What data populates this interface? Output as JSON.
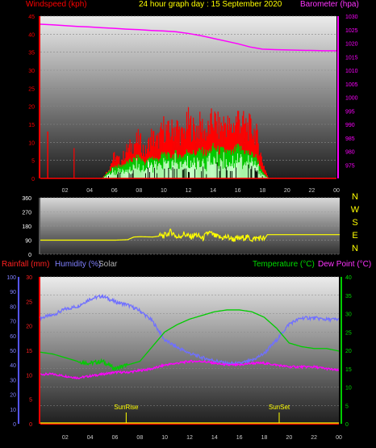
{
  "header": {
    "windspeed_label": "Windspeed (kph)",
    "title": "24 hour graph day : 15 September 2020",
    "barometer_label": "Barometer (hpa)"
  },
  "lower_header": {
    "rainfall_label": "Rainfall (mm)",
    "humidity_label": "Humidity (%)",
    "solar_label": "Solar",
    "temperature_label": "Temperature (°C)",
    "dewpoint_label": "Dew Point (°C)"
  },
  "colors": {
    "wind_gust": "#ff0000",
    "wind_avg": "#00cc00",
    "wind_low": "#ccffcc",
    "barometer": "#ff00ff",
    "direction": "#ffff00",
    "humidity": "#7070ff",
    "temperature": "#00cc00",
    "dewpoint": "#ff00ff",
    "solar": "#ffff00",
    "rain": "#ff0000"
  },
  "chart_data": [
    {
      "type": "area",
      "title": "24 hour graph day : 15 September 2020",
      "xlabel": "",
      "ylabel": "Windspeed (kph)",
      "y2label": "Barometer (hpa)",
      "xlim": [
        0,
        24
      ],
      "ylim": [
        0,
        45
      ],
      "y2lim": [
        970,
        1030
      ],
      "x_ticks": [
        "02",
        "04",
        "06",
        "08",
        "10",
        "12",
        "14",
        "16",
        "18",
        "20",
        "22",
        "00"
      ],
      "y_ticks": [
        "0",
        "5",
        "10",
        "15",
        "20",
        "25",
        "30",
        "35",
        "40",
        "45"
      ],
      "y2_ticks": [
        "975",
        "980",
        "985",
        "990",
        "995",
        "1000",
        "1005",
        "1010",
        "1015",
        "1020",
        "1025",
        "1030"
      ],
      "series": [
        {
          "name": "Windspeed (kph)",
          "x": [
            0,
            2.7,
            2.75,
            2.8,
            4.0,
            5.0,
            5.5,
            6.0,
            6.5,
            7.0,
            7.5,
            8.0,
            8.5,
            9.0,
            9.5,
            10.0,
            10.5,
            11.0,
            11.5,
            12.0,
            12.5,
            13.0,
            13.5,
            14.0,
            14.5,
            15.0,
            15.5,
            16.0,
            16.5,
            17.0,
            17.5,
            18.0,
            18.5,
            19.0,
            24
          ],
          "values": [
            0,
            0,
            13,
            0,
            0,
            0,
            3,
            8,
            6,
            10,
            12,
            14,
            9,
            15,
            13,
            18,
            16,
            19,
            15,
            20,
            17,
            19,
            16,
            21,
            18,
            20,
            17,
            22,
            19,
            18,
            16,
            6,
            0,
            0,
            0
          ]
        },
        {
          "name": "Wind average",
          "x": [
            0,
            5.0,
            5.5,
            6.0,
            6.5,
            7.0,
            7.5,
            8.0,
            8.5,
            9.0,
            9.5,
            10.0,
            10.5,
            11.0,
            11.5,
            12.0,
            12.5,
            13.0,
            13.5,
            14.0,
            14.5,
            15.0,
            15.5,
            16.0,
            16.5,
            17.0,
            17.5,
            18.0,
            18.5,
            24
          ],
          "values": [
            0,
            0,
            2,
            4,
            4,
            5,
            6,
            7,
            5,
            7,
            6,
            8,
            7,
            8,
            7,
            9,
            8,
            9,
            8,
            10,
            9,
            9,
            8,
            10,
            9,
            8,
            7,
            2,
            0,
            0
          ]
        },
        {
          "name": "Barometer (hpa)",
          "x": [
            0,
            1,
            2,
            3,
            4,
            5,
            6,
            7,
            8,
            9,
            10,
            11,
            12,
            13,
            14,
            15,
            16,
            17,
            18,
            19,
            20,
            21,
            22,
            23,
            24
          ],
          "values": [
            1027,
            1026.8,
            1026.5,
            1026.2,
            1026,
            1025.7,
            1025.5,
            1025.2,
            1025,
            1024.7,
            1024.5,
            1024.2,
            1023.6,
            1022.8,
            1021.8,
            1020.8,
            1019.8,
            1018.6,
            1017.8,
            1017.6,
            1017.5,
            1017.4,
            1017.3,
            1017.2,
            1017.2
          ]
        }
      ]
    },
    {
      "type": "line",
      "ylabel": "",
      "xlim": [
        0,
        24
      ],
      "ylim": [
        0,
        360
      ],
      "y_ticks": [
        "0",
        "90",
        "180",
        "270",
        "360"
      ],
      "right_labels": [
        "N",
        "W",
        "S",
        "E",
        "N"
      ],
      "series": [
        {
          "name": "",
          "x": [
            0,
            1,
            2,
            3,
            4,
            5,
            6,
            7,
            7.5,
            8,
            9,
            10,
            10.5,
            11,
            11.5,
            12,
            12.5,
            13,
            13.5,
            14,
            14.5,
            15,
            15.5,
            16,
            16.5,
            17,
            17.5,
            18,
            18.2,
            19,
            20,
            21,
            22,
            23,
            24
          ],
          "values": [
            90,
            90,
            90,
            90,
            90,
            90,
            90,
            93,
            110,
            112,
            110,
            120,
            145,
            105,
            130,
            110,
            125,
            100,
            140,
            115,
            105,
            110,
            95,
            100,
            110,
            95,
            105,
            100,
            125,
            125,
            125,
            125,
            125,
            125,
            125
          ]
        }
      ]
    },
    {
      "type": "line",
      "ylabel": "",
      "xlim": [
        0,
        24
      ],
      "y_left_humidity_ticks": [
        "0",
        "10",
        "20",
        "30",
        "40",
        "50",
        "60",
        "70",
        "80",
        "90",
        "100"
      ],
      "y_left_rain_ticks": [
        "0",
        "5",
        "10",
        "15",
        "20",
        "25",
        "30"
      ],
      "y_right_ticks": [
        "0",
        "5",
        "10",
        "15",
        "20",
        "25",
        "30",
        "35",
        "40"
      ],
      "annotations": [
        {
          "text": "SunRise",
          "x": 6.9
        },
        {
          "text": "SunSet",
          "x": 19.2
        }
      ],
      "series": [
        {
          "name": "Humidity (%)",
          "axis": "humidity",
          "x": [
            0,
            1,
            2,
            3,
            4,
            5,
            6,
            7,
            8,
            9,
            10,
            11,
            12,
            13,
            14,
            15,
            16,
            17,
            18,
            19,
            20,
            21,
            22,
            23,
            24
          ],
          "values": [
            72,
            74,
            78,
            80,
            85,
            87,
            83,
            81,
            77,
            70,
            57,
            52,
            48,
            45,
            43,
            41,
            41,
            43,
            48,
            57,
            68,
            72,
            72,
            71,
            71
          ]
        },
        {
          "name": "Temperature (°C)",
          "axis": "temperature",
          "x": [
            0,
            1,
            2,
            3,
            4,
            5,
            6,
            7,
            8,
            9,
            10,
            11,
            12,
            13,
            14,
            15,
            16,
            17,
            18,
            19,
            20,
            21,
            22,
            23,
            24
          ],
          "values": [
            19.5,
            19,
            18,
            17,
            16.5,
            17,
            15,
            16,
            17,
            21,
            25,
            27,
            28.5,
            29.5,
            30.5,
            31,
            31,
            30.5,
            29,
            26,
            22,
            21,
            20.5,
            20.5,
            19.8
          ]
        },
        {
          "name": "Dew Point (°C)",
          "axis": "temperature",
          "x": [
            0,
            1,
            2,
            3,
            4,
            5,
            6,
            7,
            8,
            9,
            10,
            11,
            12,
            13,
            14,
            15,
            16,
            17,
            18,
            19,
            20,
            21,
            22,
            23,
            24
          ],
          "values": [
            13.5,
            13.5,
            13,
            12.5,
            13,
            13.5,
            14,
            14,
            14.5,
            15,
            16,
            16.5,
            17,
            17,
            16.5,
            16,
            16,
            16.5,
            16.5,
            16,
            15.5,
            15.5,
            15.5,
            15,
            14.5
          ]
        },
        {
          "name": "Rainfall (mm)",
          "axis": "rain",
          "x": [
            0,
            24
          ],
          "values": [
            0,
            0
          ]
        }
      ]
    }
  ]
}
